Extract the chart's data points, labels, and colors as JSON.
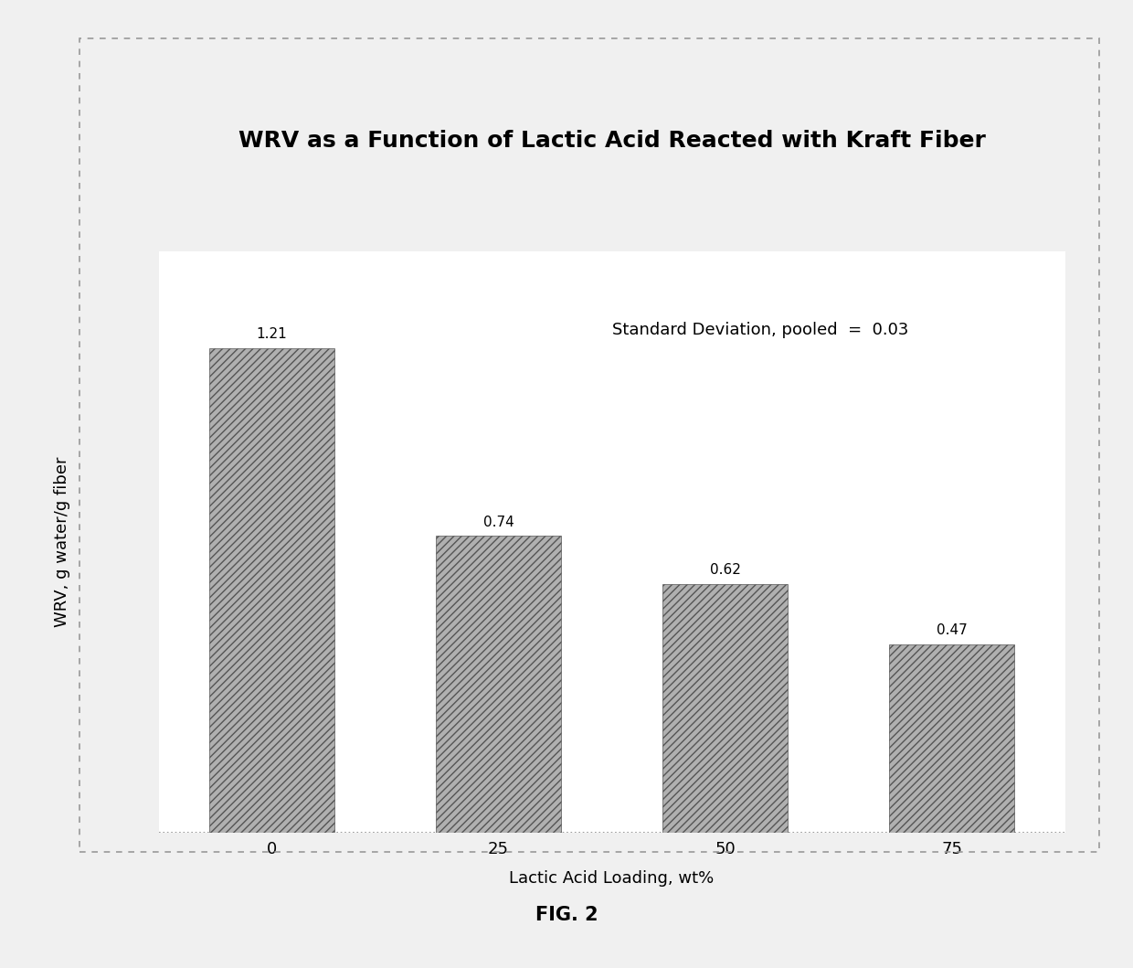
{
  "title": "WRV as a Function of Lactic Acid Reacted with Kraft Fiber",
  "xlabel": "Lactic Acid Loading, wt%",
  "ylabel": "WRV, g water/g fiber",
  "categories": [
    "0",
    "25",
    "50",
    "75"
  ],
  "values": [
    1.21,
    0.74,
    0.62,
    0.47
  ],
  "bar_color": "#b0b0b0",
  "hatch_pattern": "////",
  "hatch_color": "#555555",
  "annotation_text": "Standard Deviation, pooled  =  0.03",
  "ylim": [
    0,
    1.45
  ],
  "title_fontsize": 18,
  "axis_label_fontsize": 13,
  "tick_fontsize": 13,
  "annotation_fontsize": 13,
  "value_label_fontsize": 11,
  "fig_caption": "FIG. 2",
  "bg_color": "#f0f0f0",
  "plot_bg_color": "#ffffff",
  "border_color": "#999999",
  "bar_width": 0.55
}
